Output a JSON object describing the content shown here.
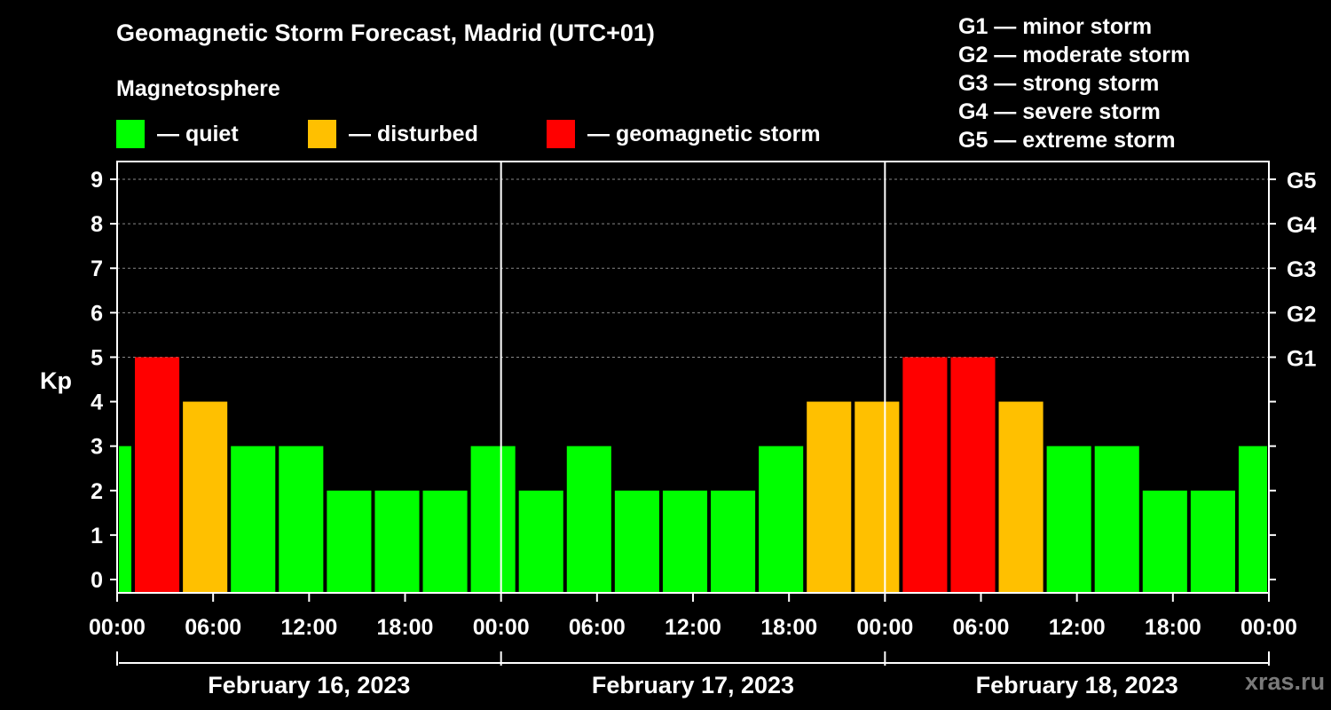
{
  "header": {
    "title": "Geomagnetic Storm Forecast, Madrid (UTC+01)",
    "subtitle": "Magnetosphere"
  },
  "legend": [
    {
      "label": "— quiet",
      "color": "#00ff00"
    },
    {
      "label": "— disturbed",
      "color": "#ffc000"
    },
    {
      "label": "— geomagnetic storm",
      "color": "#ff0000"
    }
  ],
  "storm_scale": [
    "G1 — minor storm",
    "G2 — moderate storm",
    "G3 — strong storm",
    "G4 — severe storm",
    "G5 — extreme storm"
  ],
  "watermark": "xras.ru",
  "chart_data": {
    "type": "bar",
    "title": "Geomagnetic Storm Forecast, Madrid (UTC+01)",
    "ylabel": "Kp",
    "ylim": [
      -0.3,
      9.4
    ],
    "yticks": [
      "0",
      "1",
      "2",
      "3",
      "4",
      "5",
      "6",
      "7",
      "8",
      "9"
    ],
    "g_levels": [
      {
        "label": "G1",
        "kp": 5
      },
      {
        "label": "G2",
        "kp": 6
      },
      {
        "label": "G3",
        "kp": 7
      },
      {
        "label": "G4",
        "kp": 8
      },
      {
        "label": "G5",
        "kp": 9
      }
    ],
    "x_range_hours": [
      0,
      72
    ],
    "x_tick_labels": [
      "00:00",
      "06:00",
      "12:00",
      "18:00",
      "00:00",
      "06:00",
      "12:00",
      "18:00",
      "00:00",
      "06:00",
      "12:00",
      "18:00",
      "00:00"
    ],
    "days": [
      "February 16, 2023",
      "February 17, 2023",
      "February 18, 2023"
    ],
    "bars": [
      {
        "start": 0,
        "end": 1,
        "kp": 3,
        "level": "quiet"
      },
      {
        "start": 1,
        "end": 4,
        "kp": 5,
        "level": "storm"
      },
      {
        "start": 4,
        "end": 7,
        "kp": 4,
        "level": "disturbed"
      },
      {
        "start": 7,
        "end": 10,
        "kp": 3,
        "level": "quiet"
      },
      {
        "start": 10,
        "end": 13,
        "kp": 3,
        "level": "quiet"
      },
      {
        "start": 13,
        "end": 16,
        "kp": 2,
        "level": "quiet"
      },
      {
        "start": 16,
        "end": 19,
        "kp": 2,
        "level": "quiet"
      },
      {
        "start": 19,
        "end": 22,
        "kp": 2,
        "level": "quiet"
      },
      {
        "start": 22,
        "end": 25,
        "kp": 3,
        "level": "quiet"
      },
      {
        "start": 25,
        "end": 28,
        "kp": 2,
        "level": "quiet"
      },
      {
        "start": 28,
        "end": 31,
        "kp": 3,
        "level": "quiet"
      },
      {
        "start": 31,
        "end": 34,
        "kp": 2,
        "level": "quiet"
      },
      {
        "start": 34,
        "end": 37,
        "kp": 2,
        "level": "quiet"
      },
      {
        "start": 37,
        "end": 40,
        "kp": 2,
        "level": "quiet"
      },
      {
        "start": 40,
        "end": 43,
        "kp": 3,
        "level": "quiet"
      },
      {
        "start": 43,
        "end": 46,
        "kp": 4,
        "level": "disturbed"
      },
      {
        "start": 46,
        "end": 49,
        "kp": 4,
        "level": "disturbed"
      },
      {
        "start": 49,
        "end": 52,
        "kp": 5,
        "level": "storm"
      },
      {
        "start": 52,
        "end": 55,
        "kp": 5,
        "level": "storm"
      },
      {
        "start": 55,
        "end": 58,
        "kp": 4,
        "level": "disturbed"
      },
      {
        "start": 58,
        "end": 61,
        "kp": 3,
        "level": "quiet"
      },
      {
        "start": 61,
        "end": 64,
        "kp": 3,
        "level": "quiet"
      },
      {
        "start": 64,
        "end": 67,
        "kp": 2,
        "level": "quiet"
      },
      {
        "start": 67,
        "end": 70,
        "kp": 2,
        "level": "quiet"
      },
      {
        "start": 70,
        "end": 72,
        "kp": 3,
        "level": "quiet"
      }
    ],
    "colors": {
      "quiet": "#00ff00",
      "disturbed": "#ffc000",
      "storm": "#ff0000",
      "axis": "#ffffff",
      "grid": "#888888"
    }
  }
}
